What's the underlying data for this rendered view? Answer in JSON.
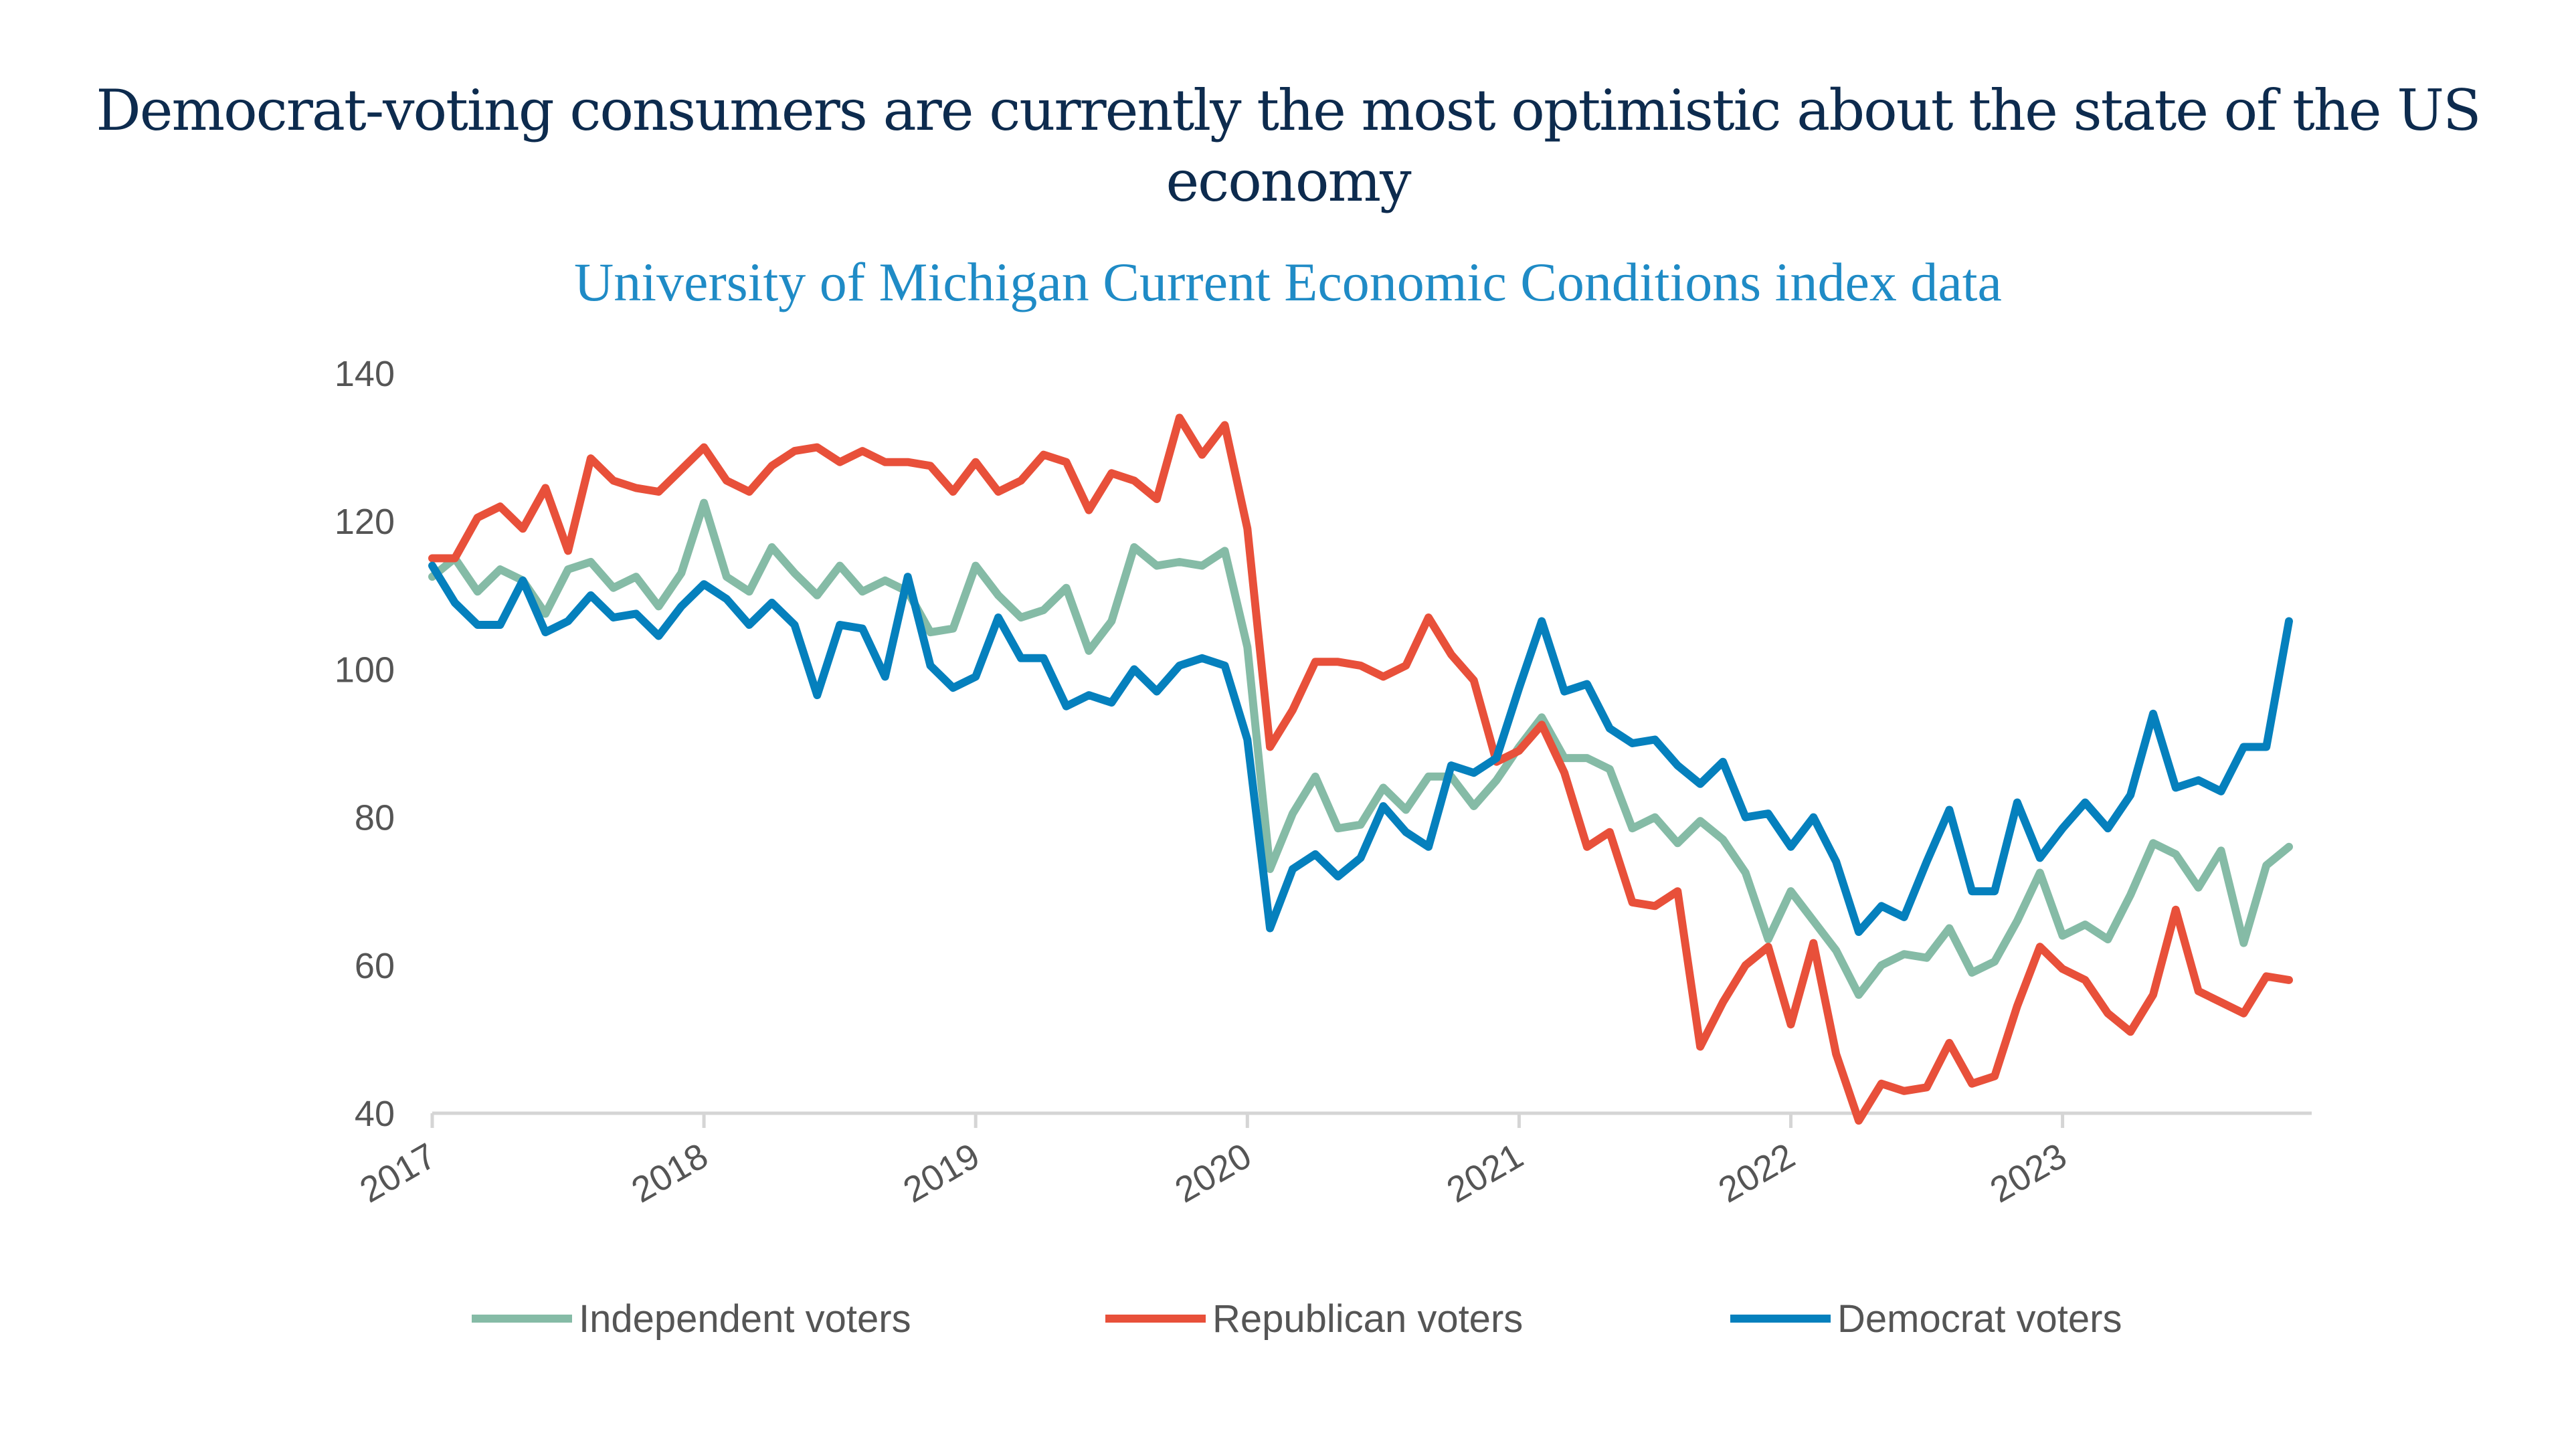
{
  "chart_data": {
    "type": "line",
    "title": "Democrat-voting consumers are currently the most optimistic about the state of the US economy",
    "subtitle": "University of Michigan Current Economic Conditions index data",
    "xlabel": "",
    "ylabel": "",
    "x_start": "2017-01",
    "x_frequency": "monthly",
    "x_tick_labels": [
      "2017",
      "2018",
      "2019",
      "2020",
      "2021",
      "2022",
      "2023"
    ],
    "y_tick_labels": [
      "40",
      "60",
      "80",
      "100",
      "120",
      "140"
    ],
    "ylim": [
      40,
      140
    ],
    "grid": false,
    "legend_position": "bottom",
    "series": [
      {
        "name": "Independent voters",
        "color": "#85bba6",
        "values": [
          112.5,
          115,
          110.5,
          113.5,
          112,
          107.5,
          113.5,
          114.5,
          111,
          112.5,
          108.5,
          113,
          122.5,
          112.5,
          110.5,
          116.5,
          113,
          110,
          114,
          110.5,
          112,
          110.5,
          105,
          105.5,
          114,
          110,
          107,
          108,
          111,
          102.5,
          106.5,
          116.5,
          114,
          114.5,
          114,
          116,
          103,
          73,
          80.5,
          85.5,
          78.5,
          79,
          84,
          81,
          85.5,
          85.5,
          81.5,
          85,
          89.5,
          93.5,
          88,
          88,
          86.5,
          78.5,
          80,
          76.5,
          79.5,
          77,
          72.5,
          63.5,
          70,
          66,
          62,
          56,
          60,
          61.5,
          61,
          65,
          59,
          60.5,
          66,
          72.5,
          64,
          65.5,
          63.5,
          69.5,
          76.5,
          75,
          70.5,
          75.5,
          63,
          73.5,
          76
        ]
      },
      {
        "name": "Republican voters",
        "color": "#e8503a",
        "values": [
          115,
          115,
          120.5,
          122,
          119,
          124.5,
          116,
          128.5,
          125.5,
          124.5,
          124,
          127,
          130,
          125.5,
          124,
          127.5,
          129.5,
          130,
          128,
          129.5,
          128,
          128,
          127.5,
          124,
          128,
          124,
          125.5,
          129,
          128,
          121.5,
          126.5,
          125.5,
          123,
          134,
          129,
          133,
          119,
          89.5,
          94.5,
          101,
          101,
          100.5,
          99,
          100.5,
          107,
          102,
          98.5,
          87.5,
          89,
          92.5,
          86,
          76,
          78,
          68.5,
          68,
          70,
          49,
          55,
          60,
          62.5,
          52,
          63,
          48,
          39,
          44,
          43,
          43.5,
          49.5,
          44,
          45,
          54.5,
          62.5,
          59.5,
          58,
          53.5,
          51,
          56,
          67.5,
          56.5,
          55,
          53.5,
          58.5,
          58
        ]
      },
      {
        "name": "Democrat voters",
        "color": "#0580bd",
        "values": [
          114,
          109,
          106,
          106,
          112,
          105,
          106.5,
          110,
          107,
          107.5,
          104.5,
          108.5,
          111.5,
          109.5,
          106,
          109,
          106,
          96.5,
          106,
          105.5,
          99,
          112.5,
          100.5,
          97.5,
          99,
          107,
          101.5,
          101.5,
          95,
          96.5,
          95.5,
          100,
          97,
          100.5,
          101.5,
          100.5,
          90.5,
          65,
          73,
          75,
          72,
          74.5,
          81.5,
          78,
          76,
          87,
          86,
          88,
          97.5,
          106.5,
          97,
          98,
          92,
          90,
          90.5,
          87,
          84.5,
          87.5,
          80,
          80.5,
          76,
          80,
          74,
          64.5,
          68,
          66.5,
          74,
          81,
          70,
          70,
          82,
          74.5,
          78.5,
          82,
          78.5,
          83,
          94,
          84,
          85,
          83.5,
          89.5,
          89.5,
          106.5
        ]
      }
    ]
  }
}
